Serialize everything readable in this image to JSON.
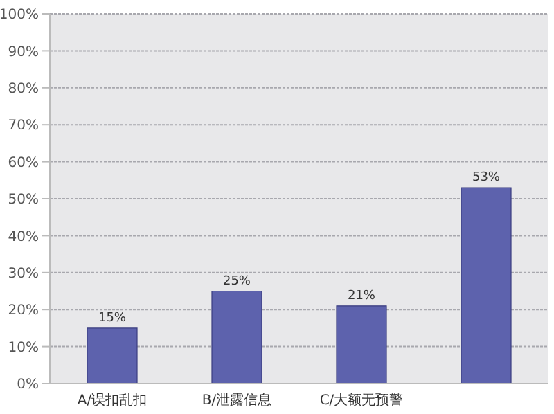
{
  "chart_data": {
    "type": "bar",
    "categories": [
      "A/误扣乱扣",
      "B/泄露信息",
      "C/大额无预警",
      null
    ],
    "values": [
      15,
      25,
      21,
      53
    ],
    "value_labels": [
      "15%",
      "25%",
      "21%",
      "53%"
    ],
    "color": "#5d62ad",
    "ylim": [
      0,
      100
    ],
    "yticks": [
      {
        "value": 0,
        "label": "0%"
      },
      {
        "value": 10,
        "label": "10%"
      },
      {
        "value": 20,
        "label": "20%"
      },
      {
        "value": 30,
        "label": "30%"
      },
      {
        "value": 40,
        "label": "40%"
      },
      {
        "value": 50,
        "label": "50%"
      },
      {
        "value": 60,
        "label": "60%"
      },
      {
        "value": 70,
        "label": "70%"
      },
      {
        "value": 80,
        "label": "80%"
      },
      {
        "value": 90,
        "label": "90%"
      },
      {
        "value": 100,
        "label": "100%"
      }
    ],
    "grid": "y"
  }
}
